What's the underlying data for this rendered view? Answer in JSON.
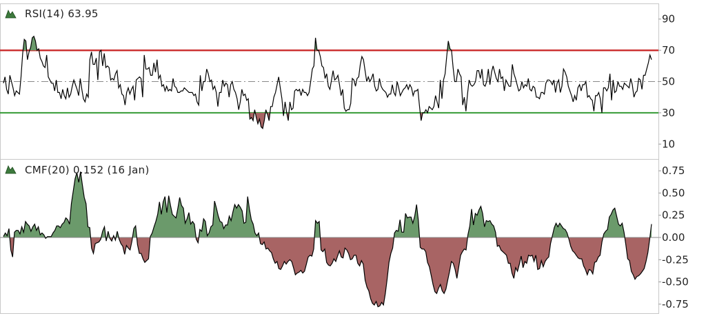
{
  "colors": {
    "background": "#ffffff",
    "frame": "#c8c8c8",
    "trace": "#000000",
    "rsi_upper_line": "#cc3333",
    "rsi_lower_line": "#339933",
    "cmf_positive_fill": "#6b9a6b",
    "cmf_negative_fill": "#a86464",
    "icon_fill": "#3d7a3d"
  },
  "chart_data": [
    {
      "type": "line",
      "label": "RSI(14) 63.95",
      "indicator_icon": "mountain-chart-icon",
      "ylim": [
        0,
        100
      ],
      "yticks": [
        "90",
        "70",
        "50",
        "30",
        "10"
      ],
      "ytick_values": [
        90,
        70,
        50,
        30,
        10
      ],
      "reference_lines": {
        "upper": 70,
        "middle": 50,
        "lower": 30
      },
      "grid": false,
      "series": [
        {
          "values": [
            49,
            53,
            45,
            42,
            54,
            50,
            46,
            41,
            44,
            43,
            42,
            53,
            68,
            77,
            76,
            64,
            69,
            72,
            78,
            79,
            76,
            70,
            71,
            65,
            63,
            60,
            59,
            67,
            53,
            51,
            49,
            49,
            44,
            51,
            43,
            43,
            39,
            45,
            41,
            39,
            46,
            40,
            42,
            47,
            51,
            48,
            45,
            41,
            52,
            45,
            39,
            37,
            42,
            40,
            64,
            69,
            61,
            61,
            65,
            51,
            69,
            70,
            60,
            68,
            59,
            60,
            59,
            51,
            52,
            51,
            55,
            57,
            46,
            48,
            42,
            41,
            35,
            43,
            46,
            42,
            45,
            47,
            38,
            51,
            52,
            53,
            52,
            40,
            67,
            58,
            58,
            59,
            54,
            54,
            62,
            56,
            64,
            52,
            54,
            47,
            48,
            44,
            47,
            44,
            45,
            44,
            52,
            47,
            46,
            43,
            43,
            44,
            44,
            46,
            45,
            44,
            43,
            43,
            43,
            41,
            42,
            37,
            35,
            54,
            44,
            50,
            50,
            58,
            55,
            50,
            51,
            45,
            47,
            43,
            34,
            43,
            43,
            51,
            47,
            49,
            48,
            40,
            48,
            50,
            45,
            43,
            39,
            32,
            37,
            45,
            41,
            42,
            38,
            39,
            26,
            27,
            25,
            32,
            27,
            23,
            26,
            21,
            20,
            25,
            32,
            29,
            25,
            34,
            34,
            40,
            43,
            48,
            53,
            46,
            39,
            28,
            37,
            30,
            25,
            37,
            32,
            33,
            44,
            45,
            44,
            45,
            41,
            45,
            43,
            43,
            41,
            43,
            50,
            58,
            60,
            78,
            70,
            70,
            66,
            60,
            59,
            52,
            55,
            47,
            45,
            51,
            57,
            51,
            52,
            54,
            48,
            41,
            45,
            33,
            31,
            32,
            32,
            36,
            52,
            51,
            47,
            52,
            53,
            61,
            66,
            64,
            57,
            50,
            53,
            50,
            52,
            55,
            47,
            44,
            45,
            52,
            47,
            45,
            44,
            43,
            40,
            42,
            42,
            48,
            43,
            41,
            50,
            46,
            41,
            43,
            45,
            46,
            48,
            45,
            48,
            46,
            41,
            44,
            44,
            45,
            34,
            25,
            30,
            30,
            32,
            30,
            34,
            33,
            32,
            34,
            41,
            37,
            33,
            51,
            39,
            51,
            55,
            66,
            76,
            71,
            70,
            59,
            50,
            50,
            58,
            55,
            53,
            35,
            40,
            31,
            42,
            51,
            48,
            47,
            48,
            50,
            57,
            57,
            52,
            58,
            48,
            47,
            50,
            58,
            48,
            56,
            60,
            56,
            52,
            50,
            58,
            52,
            53,
            44,
            51,
            49,
            47,
            47,
            61,
            55,
            52,
            48,
            44,
            45,
            50,
            46,
            48,
            47,
            52,
            45,
            44,
            47,
            46,
            40,
            40,
            39,
            43,
            43,
            42,
            49,
            51,
            51,
            50,
            48,
            51,
            43,
            49,
            51,
            43,
            47,
            58,
            56,
            53,
            47,
            44,
            41,
            37,
            41,
            38,
            46,
            48,
            44,
            48,
            48,
            50,
            40,
            41,
            39,
            38,
            31,
            41,
            41,
            43,
            39,
            30,
            46,
            46,
            44,
            46,
            55,
            38,
            51,
            43,
            44,
            50,
            47,
            47,
            45,
            49,
            48,
            47,
            46,
            52,
            48,
            40,
            43,
            44,
            52,
            51,
            45,
            54,
            54,
            58,
            62,
            67,
            64
          ]
        }
      ]
    },
    {
      "type": "area",
      "label": "CMF(20) 0.152 (16 Jan)",
      "indicator_icon": "mountain-chart-icon",
      "ylim": [
        -0.875,
        0.875
      ],
      "yticks": [
        "0.75",
        "0.50",
        "0.25",
        "0.00",
        "-0.25",
        "-0.50",
        "-0.75"
      ],
      "ytick_values": [
        0.75,
        0.5,
        0.25,
        0,
        -0.25,
        -0.5,
        -0.75
      ],
      "baseline": 0,
      "grid": false,
      "series": [
        {
          "values": [
            0.01,
            0.05,
            0.02,
            0.1,
            -0.14,
            -0.22,
            0.06,
            0.08,
            0.08,
            0.04,
            0.12,
            0.06,
            0.18,
            0.15,
            0.13,
            0.07,
            0.12,
            0.15,
            0.08,
            0.12,
            0.03,
            0.05,
            0.03,
            -0.01,
            0.01,
            0.01,
            0.01,
            0.05,
            0.08,
            0.13,
            0.13,
            0.11,
            0.15,
            0.17,
            0.22,
            0.2,
            0.15,
            0.38,
            0.52,
            0.66,
            0.73,
            0.62,
            0.74,
            0.59,
            0.45,
            0.38,
            0.12,
            0.11,
            -0.12,
            -0.18,
            -0.07,
            -0.06,
            -0.05,
            -0.02,
            0.07,
            0.12,
            -0.04,
            0.07,
            -0.01,
            -0.04,
            0.02,
            -0.03,
            0.07,
            -0.02,
            -0.07,
            -0.1,
            -0.19,
            -0.09,
            -0.12,
            -0.14,
            -0.04,
            0.1,
            0.13,
            -0.08,
            -0.18,
            -0.18,
            -0.24,
            -0.28,
            -0.26,
            -0.24,
            0.01,
            0.05,
            0.12,
            0.18,
            0.26,
            0.4,
            0.26,
            0.4,
            0.46,
            0.28,
            0.47,
            0.36,
            0.26,
            0.24,
            0.22,
            0.33,
            0.45,
            0.36,
            0.33,
            0.16,
            0.21,
            0.28,
            0.15,
            0.18,
            0.15,
            -0.02,
            -0.06,
            0.09,
            0.07,
            0.21,
            0.18,
            0.02,
            0.05,
            0.12,
            0.14,
            0.41,
            0.33,
            0.24,
            0.18,
            0.17,
            0.1,
            0.14,
            0.14,
            0.24,
            0.19,
            0.29,
            0.37,
            0.33,
            0.37,
            0.34,
            0.3,
            0.16,
            0.17,
            0.46,
            0.32,
            0.2,
            0.15,
            0.05,
            0.02,
            0.05,
            -0.07,
            -0.08,
            -0.05,
            -0.13,
            -0.12,
            -0.15,
            -0.17,
            -0.24,
            -0.29,
            -0.27,
            -0.35,
            -0.36,
            -0.32,
            -0.27,
            -0.3,
            -0.27,
            -0.25,
            -0.27,
            -0.34,
            -0.42,
            -0.4,
            -0.39,
            -0.37,
            -0.4,
            -0.38,
            -0.3,
            -0.22,
            -0.2,
            -0.21,
            -0.13,
            0.19,
            0.16,
            0.18,
            -0.14,
            -0.16,
            -0.13,
            -0.28,
            -0.31,
            -0.32,
            -0.29,
            -0.24,
            -0.27,
            -0.21,
            -0.15,
            -0.22,
            -0.23,
            -0.12,
            -0.14,
            -0.18,
            -0.25,
            -0.24,
            -0.2,
            -0.2,
            -0.29,
            -0.32,
            -0.26,
            -0.3,
            -0.48,
            -0.56,
            -0.6,
            -0.69,
            -0.74,
            -0.76,
            -0.72,
            -0.78,
            -0.77,
            -0.73,
            -0.76,
            -0.63,
            -0.47,
            -0.28,
            -0.18,
            -0.12,
            0.05,
            0.08,
            0.07,
            0.2,
            0.06,
            0.06,
            0.27,
            0.22,
            0.23,
            0.23,
            0.16,
            0.24,
            0.37,
            0.19,
            -0.11,
            -0.13,
            -0.13,
            -0.16,
            -0.28,
            -0.33,
            -0.43,
            -0.53,
            -0.61,
            -0.63,
            -0.57,
            -0.53,
            -0.6,
            -0.63,
            -0.58,
            -0.48,
            -0.38,
            -0.27,
            -0.29,
            -0.36,
            -0.46,
            -0.33,
            -0.2,
            -0.16,
            -0.13,
            -0.14,
            0.03,
            0.13,
            0.32,
            0.14,
            0.27,
            0.25,
            0.31,
            0.35,
            0.27,
            0.12,
            0.19,
            0.18,
            0.19,
            0.15,
            0.13,
            0.06,
            -0.1,
            -0.09,
            -0.14,
            -0.16,
            -0.18,
            -0.2,
            -0.29,
            -0.29,
            -0.4,
            -0.46,
            -0.34,
            -0.38,
            -0.3,
            -0.21,
            -0.34,
            -0.27,
            -0.29,
            -0.2,
            -0.21,
            -0.2,
            -0.27,
            -0.2,
            -0.36,
            -0.35,
            -0.26,
            -0.33,
            -0.27,
            -0.24,
            -0.22,
            -0.07,
            0.02,
            0.11,
            0.16,
            0.12,
            0.16,
            0.13,
            0.1,
            0.09,
            0.05,
            -0.02,
            -0.1,
            -0.15,
            -0.17,
            -0.2,
            -0.23,
            -0.24,
            -0.24,
            -0.32,
            -0.36,
            -0.42,
            -0.36,
            -0.37,
            -0.41,
            -0.28,
            -0.27,
            -0.22,
            -0.2,
            -0.05,
            0.04,
            0.07,
            0.09,
            0.23,
            0.26,
            0.31,
            0.33,
            0.24,
            0.15,
            0.13,
            0.16,
            0.06,
            -0.08,
            -0.24,
            -0.26,
            -0.38,
            -0.42,
            -0.47,
            -0.44,
            -0.43,
            -0.41,
            -0.38,
            -0.35,
            -0.27,
            -0.17,
            -0.02,
            0.15
          ]
        }
      ]
    }
  ]
}
